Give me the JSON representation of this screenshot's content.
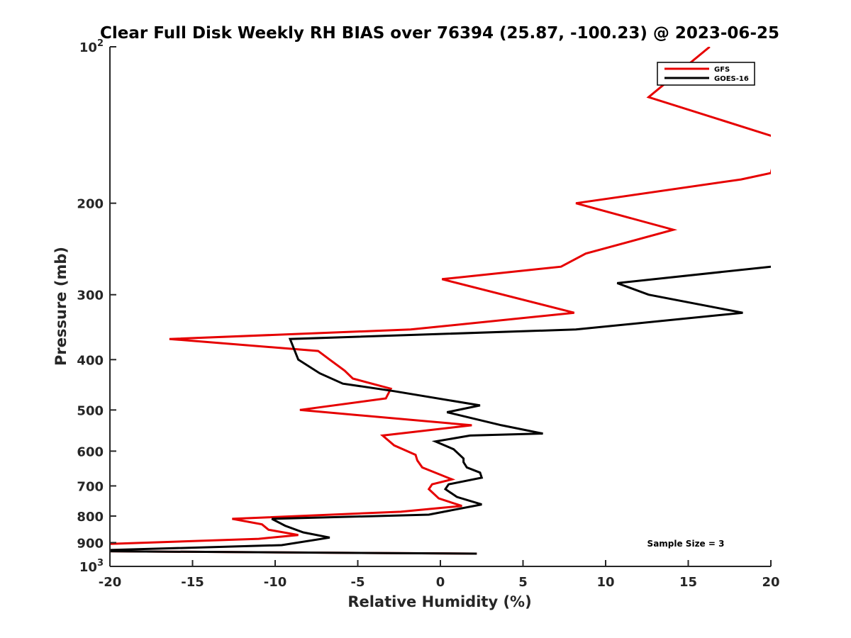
{
  "chart_data": {
    "type": "line",
    "title": "Clear Full Disk Weekly RH BIAS over 76394 (25.87, -100.23) @ 2023-06-25",
    "xlabel": "Relative Humidity (%)",
    "ylabel": "Pressure (mb)",
    "xlim": [
      -20,
      20
    ],
    "ylim": [
      100,
      1000
    ],
    "y_scale": "log",
    "y_reversed": true,
    "grid": false,
    "legend_position": "top-right",
    "x_ticks": [
      "-20",
      "-15",
      "-10",
      "-5",
      "0",
      "5",
      "10",
      "15",
      "20"
    ],
    "y_ticks": [
      {
        "value": 100,
        "base": "10",
        "exp": "2"
      },
      {
        "value": 200,
        "label": "200"
      },
      {
        "value": 300,
        "label": "300"
      },
      {
        "value": 400,
        "label": "400"
      },
      {
        "value": 500,
        "label": "500"
      },
      {
        "value": 600,
        "label": "600"
      },
      {
        "value": 700,
        "label": "700"
      },
      {
        "value": 800,
        "label": "800"
      },
      {
        "value": 900,
        "label": "900"
      },
      {
        "value": 1000,
        "base": "10",
        "exp": "3"
      }
    ],
    "annotation": "Sample Size = 3",
    "series": [
      {
        "name": "GFS",
        "color": "#e60000",
        "points": [
          [
            16.3,
            100
          ],
          [
            12.6,
            125
          ],
          [
            20.5,
            150
          ],
          [
            20,
            175
          ],
          [
            18.2,
            180
          ],
          [
            8.2,
            200
          ],
          [
            14.1,
            225
          ],
          [
            8.8,
            250
          ],
          [
            7.3,
            265
          ],
          [
            0.1,
            280
          ],
          [
            8.1,
            325
          ],
          [
            -1.8,
            350
          ],
          [
            -16.4,
            365
          ],
          [
            -7.4,
            385
          ],
          [
            -6.7,
            400
          ],
          [
            -5.8,
            420
          ],
          [
            -5.3,
            435
          ],
          [
            -3,
            455
          ],
          [
            -3.3,
            475
          ],
          [
            -8.5,
            500
          ],
          [
            1.9,
            535
          ],
          [
            -3.5,
            560
          ],
          [
            -2.8,
            585
          ],
          [
            -1.5,
            610
          ],
          [
            -1.4,
            625
          ],
          [
            -1.1,
            645
          ],
          [
            0.7,
            680
          ],
          [
            -0.5,
            695
          ],
          [
            -0.7,
            710
          ],
          [
            -0.1,
            740
          ],
          [
            1.3,
            765
          ],
          [
            -2.4,
            785
          ],
          [
            -12.6,
            810
          ],
          [
            -10.8,
            830
          ],
          [
            -10.4,
            850
          ],
          [
            -8.6,
            870
          ],
          [
            -11,
            885
          ],
          [
            -20,
            905
          ],
          [
            -20.5,
            935
          ],
          [
            2.2,
            945
          ]
        ]
      },
      {
        "name": "GOES-16",
        "color": "#000000",
        "points": [
          [
            20,
            265
          ],
          [
            10.7,
            285
          ],
          [
            12.6,
            300
          ],
          [
            18.3,
            325
          ],
          [
            8.2,
            350
          ],
          [
            -9.1,
            365
          ],
          [
            -8.6,
            400
          ],
          [
            -7.3,
            425
          ],
          [
            -5.9,
            445
          ],
          [
            -2.8,
            460
          ],
          [
            2.4,
            490
          ],
          [
            0.4,
            505
          ],
          [
            3.7,
            535
          ],
          [
            6.2,
            555
          ],
          [
            1.8,
            560
          ],
          [
            -0.3,
            575
          ],
          [
            0.8,
            595
          ],
          [
            1.4,
            620
          ],
          [
            1.4,
            630
          ],
          [
            1.6,
            645
          ],
          [
            2.4,
            660
          ],
          [
            2.5,
            675
          ],
          [
            0.5,
            695
          ],
          [
            0.3,
            710
          ],
          [
            1,
            735
          ],
          [
            2.5,
            760
          ],
          [
            -0.7,
            795
          ],
          [
            -10.2,
            810
          ],
          [
            -9.4,
            835
          ],
          [
            -8.3,
            860
          ],
          [
            -6.7,
            880
          ],
          [
            -9.6,
            910
          ],
          [
            -20,
            930
          ],
          [
            -20.5,
            935
          ],
          [
            2.2,
            945
          ]
        ]
      }
    ]
  }
}
